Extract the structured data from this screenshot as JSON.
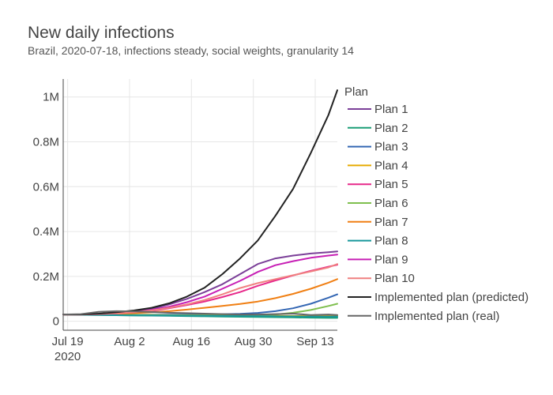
{
  "chart_data": {
    "type": "line",
    "title": "New daily infections",
    "subtitle": "Brazil, 2020-07-18, infections steady, social weights, granularity 14",
    "xlabel": "",
    "ylabel": "",
    "x_range": [
      "2020-07-18",
      "2020-09-18"
    ],
    "ylim": [
      -40000,
      1080000
    ],
    "x_ticks": [
      {
        "date": "2020-07-19",
        "label": "Jul 19",
        "sublabel": "2020"
      },
      {
        "date": "2020-08-02",
        "label": "Aug 2",
        "sublabel": ""
      },
      {
        "date": "2020-08-16",
        "label": "Aug 16",
        "sublabel": ""
      },
      {
        "date": "2020-08-30",
        "label": "Aug 30",
        "sublabel": ""
      },
      {
        "date": "2020-09-13",
        "label": "Sep 13",
        "sublabel": ""
      }
    ],
    "y_ticks": [
      {
        "value": 0,
        "label": "0"
      },
      {
        "value": 200000,
        "label": "0.2M"
      },
      {
        "value": 400000,
        "label": "0.4M"
      },
      {
        "value": 600000,
        "label": "0.6M"
      },
      {
        "value": 800000,
        "label": "0.8M"
      },
      {
        "value": 1000000,
        "label": "1M"
      }
    ],
    "grid": true,
    "legend_title": "Plan",
    "legend_position": "right",
    "x": [
      "2020-07-18",
      "2020-07-22",
      "2020-07-26",
      "2020-07-30",
      "2020-08-03",
      "2020-08-07",
      "2020-08-11",
      "2020-08-15",
      "2020-08-19",
      "2020-08-23",
      "2020-08-27",
      "2020-08-31",
      "2020-09-04",
      "2020-09-08",
      "2020-09-12",
      "2020-09-16",
      "2020-09-18"
    ],
    "series": [
      {
        "name": "Plan 1",
        "color": "#7b3f98",
        "values": [
          30000,
          30000,
          32000,
          36000,
          42000,
          55000,
          75000,
          100000,
          130000,
          165000,
          210000,
          255000,
          280000,
          293000,
          302000,
          308000,
          311000
        ]
      },
      {
        "name": "Plan 2",
        "color": "#1b9e77",
        "values": [
          30000,
          29000,
          28000,
          27000,
          26000,
          25000,
          24000,
          23000,
          22000,
          21000,
          20000,
          19000,
          18000,
          17000,
          16000,
          15000,
          15000
        ]
      },
      {
        "name": "Plan 3",
        "color": "#3366b3",
        "values": [
          30000,
          29500,
          29000,
          29000,
          29000,
          29000,
          29000,
          29500,
          30000,
          31000,
          33000,
          37000,
          45000,
          58000,
          78000,
          105000,
          120000
        ]
      },
      {
        "name": "Plan 4",
        "color": "#e6ab02",
        "values": [
          30000,
          29500,
          29000,
          28500,
          28000,
          27500,
          27000,
          26500,
          26000,
          25500,
          25000,
          24500,
          24000,
          23500,
          23000,
          24000,
          25000
        ]
      },
      {
        "name": "Plan 5",
        "color": "#e7298a",
        "values": [
          30000,
          30000,
          31000,
          33000,
          38000,
          46000,
          58000,
          72000,
          88000,
          108000,
          130000,
          158000,
          182000,
          204000,
          225000,
          243000,
          252000
        ]
      },
      {
        "name": "Plan 6",
        "color": "#7fbf4f",
        "values": [
          30000,
          29500,
          29000,
          28500,
          28000,
          27500,
          27000,
          26500,
          26000,
          25500,
          25000,
          26000,
          30000,
          38000,
          50000,
          68000,
          78000
        ]
      },
      {
        "name": "Plan 7",
        "color": "#f07f13",
        "values": [
          30000,
          30000,
          31000,
          33000,
          36000,
          40000,
          45000,
          52000,
          60000,
          68000,
          77000,
          88000,
          103000,
          122000,
          145000,
          172000,
          188000
        ]
      },
      {
        "name": "Plan 8",
        "color": "#17979b",
        "values": [
          30000,
          29000,
          28000,
          27000,
          26000,
          25500,
          25000,
          24500,
          24000,
          23500,
          23000,
          22500,
          22000,
          21500,
          21000,
          21000,
          21000
        ]
      },
      {
        "name": "Plan 9",
        "color": "#c71fb5",
        "values": [
          30000,
          30000,
          32000,
          35000,
          40000,
          50000,
          65000,
          85000,
          110000,
          145000,
          180000,
          220000,
          250000,
          268000,
          283000,
          293000,
          297000
        ]
      },
      {
        "name": "Plan 10",
        "color": "#f08080",
        "values": [
          30000,
          30000,
          32000,
          35000,
          40000,
          48000,
          60000,
          75000,
          95000,
          120000,
          148000,
          170000,
          188000,
          205000,
          222000,
          240000,
          255000
        ]
      },
      {
        "name": "Implemented plan (predicted)",
        "color": "#222222",
        "values": [
          30000,
          30000,
          34000,
          40000,
          48000,
          60000,
          80000,
          110000,
          150000,
          210000,
          280000,
          360000,
          470000,
          590000,
          750000,
          920000,
          1030000
        ]
      },
      {
        "name": "Implemented plan (real)",
        "color": "#666666",
        "values": [
          30000,
          32000,
          42000,
          45000,
          44000,
          41000,
          38000,
          36000,
          34000,
          32000,
          30000,
          30000,
          32000,
          34000,
          28000,
          30000,
          28000
        ]
      }
    ]
  }
}
